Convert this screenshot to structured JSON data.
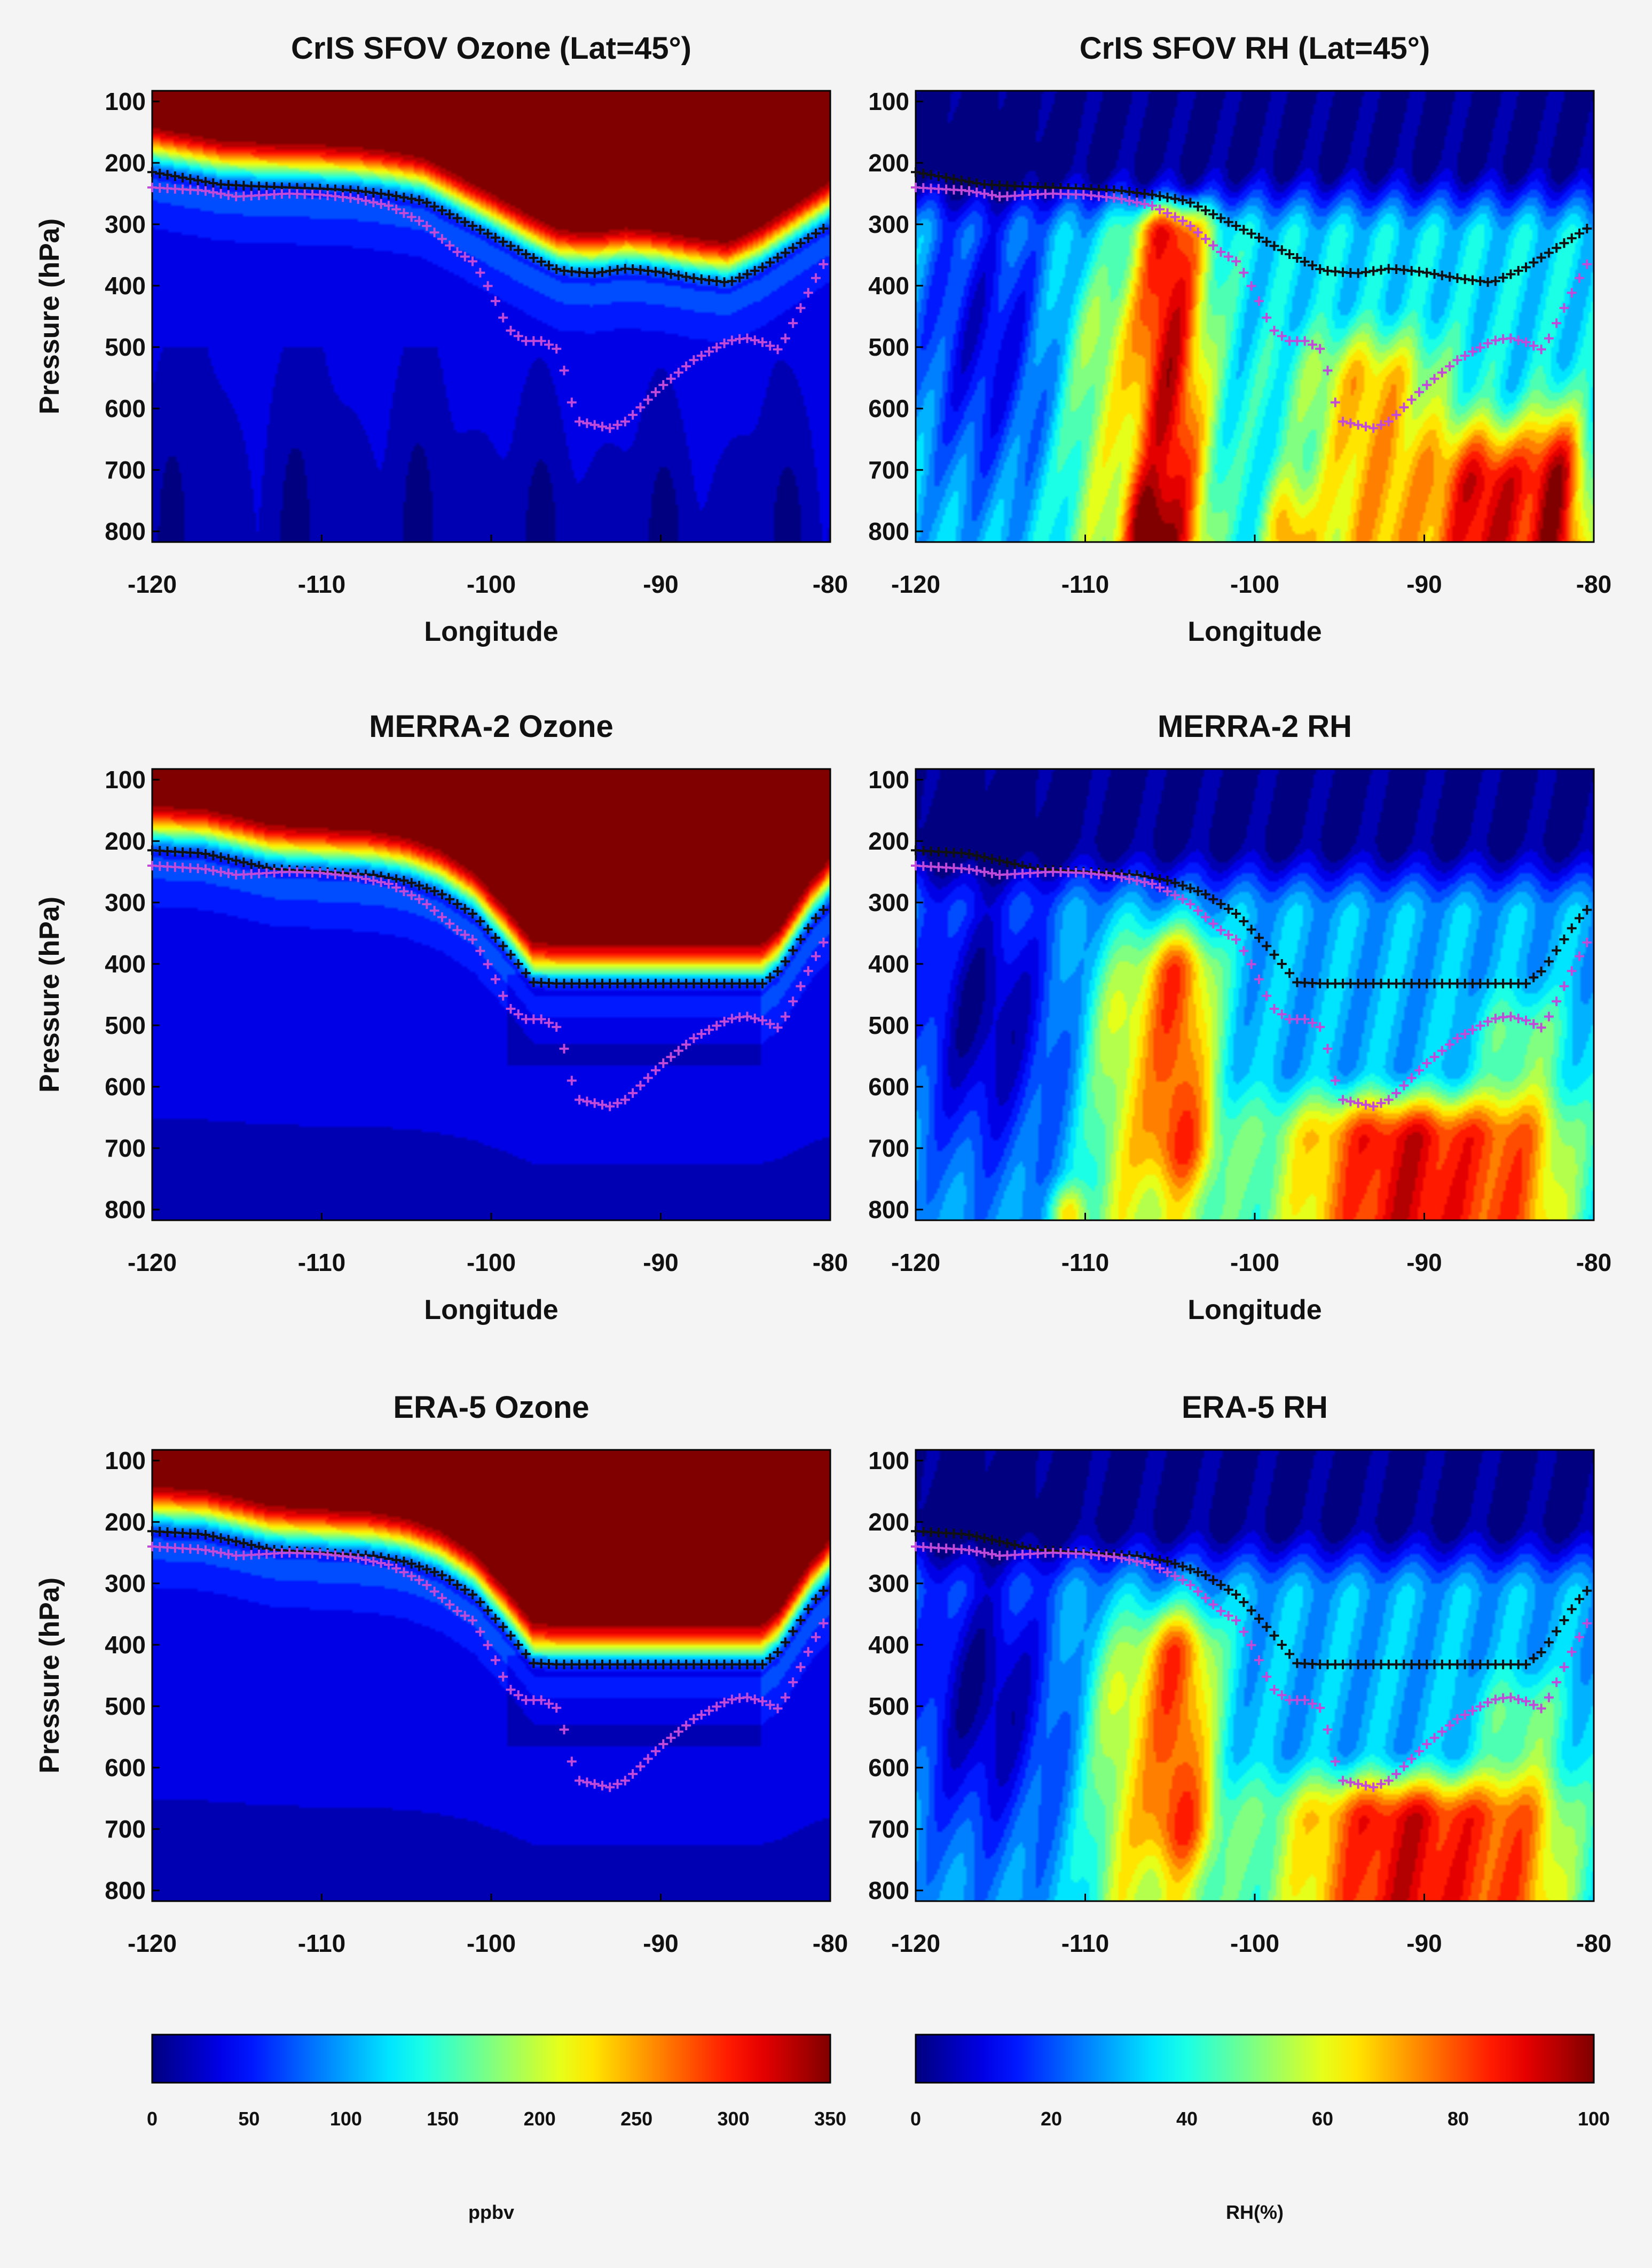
{
  "chart_data": [
    {
      "type": "heatmap",
      "title": "CrIS SFOV Ozone (Lat=45°)",
      "xlabel": "Longitude",
      "ylabel": "Pressure (hPa)",
      "field": "ozone",
      "source": "cris",
      "xlim": [
        -120,
        -80
      ],
      "ylim": [
        100,
        800
      ],
      "xticks": [
        "-120",
        "-110",
        "-100",
        "-90",
        "-80"
      ],
      "yticks": [
        "100",
        "200",
        "300",
        "400",
        "500",
        "600",
        "700",
        "800"
      ],
      "colorbar_range": [
        0,
        350
      ],
      "overlay_black_marker": "+",
      "overlay_magenta_marker": "+"
    },
    {
      "type": "heatmap",
      "title": "CrIS SFOV RH (Lat=45°)",
      "xlabel": "Longitude",
      "ylabel": "",
      "field": "rh",
      "source": "cris",
      "xlim": [
        -120,
        -80
      ],
      "ylim": [
        100,
        800
      ],
      "xticks": [
        "-120",
        "-110",
        "-100",
        "-90",
        "-80"
      ],
      "yticks": [
        "100",
        "200",
        "300",
        "400",
        "500",
        "600",
        "700",
        "800"
      ],
      "colorbar_range": [
        0,
        100
      ],
      "overlay_black_marker": "+",
      "overlay_magenta_marker": "+"
    },
    {
      "type": "heatmap",
      "title": "MERRA-2 Ozone",
      "xlabel": "Longitude",
      "ylabel": "Pressure (hPa)",
      "field": "ozone",
      "source": "merra",
      "xlim": [
        -120,
        -80
      ],
      "ylim": [
        100,
        800
      ],
      "xticks": [
        "-120",
        "-110",
        "-100",
        "-90",
        "-80"
      ],
      "yticks": [
        "100",
        "200",
        "300",
        "400",
        "500",
        "600",
        "700",
        "800"
      ],
      "colorbar_range": [
        0,
        350
      ],
      "overlay_black_marker": "+",
      "overlay_magenta_marker": "+"
    },
    {
      "type": "heatmap",
      "title": "MERRA-2 RH",
      "xlabel": "Longitude",
      "ylabel": "",
      "field": "rh",
      "source": "merra",
      "xlim": [
        -120,
        -80
      ],
      "ylim": [
        100,
        800
      ],
      "xticks": [
        "-120",
        "-110",
        "-100",
        "-90",
        "-80"
      ],
      "yticks": [
        "100",
        "200",
        "300",
        "400",
        "500",
        "600",
        "700",
        "800"
      ],
      "colorbar_range": [
        0,
        100
      ],
      "overlay_black_marker": "+",
      "overlay_magenta_marker": "+"
    },
    {
      "type": "heatmap",
      "title": "ERA-5 Ozone",
      "xlabel": "",
      "ylabel": "Pressure (hPa)",
      "field": "ozone",
      "source": "era",
      "xlim": [
        -120,
        -80
      ],
      "ylim": [
        100,
        800
      ],
      "xticks": [
        "-120",
        "-110",
        "-100",
        "-90",
        "-80"
      ],
      "yticks": [
        "100",
        "200",
        "300",
        "400",
        "500",
        "600",
        "700",
        "800"
      ],
      "colorbar_range": [
        0,
        350
      ],
      "overlay_black_marker": "+",
      "overlay_magenta_marker": "+"
    },
    {
      "type": "heatmap",
      "title": "ERA-5 RH",
      "xlabel": "",
      "ylabel": "",
      "field": "rh",
      "source": "era",
      "xlim": [
        -120,
        -80
      ],
      "ylim": [
        100,
        800
      ],
      "xticks": [
        "-120",
        "-110",
        "-100",
        "-90",
        "-80"
      ],
      "yticks": [
        "100",
        "200",
        "300",
        "400",
        "500",
        "600",
        "700",
        "800"
      ],
      "colorbar_range": [
        0,
        100
      ],
      "overlay_black_marker": "+",
      "overlay_magenta_marker": "+"
    }
  ],
  "colorbars": [
    {
      "field": "ozone",
      "range": [
        0,
        350
      ],
      "ticks": [
        "0",
        "50",
        "100",
        "150",
        "200",
        "250",
        "300",
        "350"
      ],
      "unit": "ppbv",
      "colormap": "jet"
    },
    {
      "field": "rh",
      "range": [
        0,
        100
      ],
      "ticks": [
        "0",
        "20",
        "40",
        "60",
        "80",
        "100"
      ],
      "unit": "RH(%)",
      "colormap": "jet"
    }
  ],
  "overlays": {
    "black_line_cris": [
      [
        -120,
        215
      ],
      [
        -118,
        225
      ],
      [
        -116,
        235
      ],
      [
        -114,
        238
      ],
      [
        -112,
        240
      ],
      [
        -110,
        242
      ],
      [
        -108,
        245
      ],
      [
        -106,
        252
      ],
      [
        -104,
        262
      ],
      [
        -102,
        290
      ],
      [
        -100,
        318
      ],
      [
        -98,
        348
      ],
      [
        -96,
        375
      ],
      [
        -94,
        380
      ],
      [
        -92,
        372
      ],
      [
        -90,
        378
      ],
      [
        -88,
        388
      ],
      [
        -86,
        395
      ],
      [
        -84,
        370
      ],
      [
        -82,
        335
      ],
      [
        -80,
        300
      ]
    ],
    "black_line_reanalysis": [
      [
        -120,
        215
      ],
      [
        -117,
        220
      ],
      [
        -115,
        232
      ],
      [
        -113,
        245
      ],
      [
        -110,
        250
      ],
      [
        -107,
        255
      ],
      [
        -105,
        265
      ],
      [
        -103,
        285
      ],
      [
        -101,
        320
      ],
      [
        -99,
        380
      ],
      [
        -97.5,
        430
      ],
      [
        -96,
        432
      ],
      [
        -92,
        432
      ],
      [
        -88,
        432
      ],
      [
        -84,
        432
      ],
      [
        -83,
        410
      ],
      [
        -82,
        370
      ],
      [
        -81,
        330
      ],
      [
        -80,
        300
      ]
    ],
    "magenta_line": [
      [
        -120,
        240
      ],
      [
        -117,
        245
      ],
      [
        -115,
        255
      ],
      [
        -112,
        250
      ],
      [
        -110,
        252
      ],
      [
        -108,
        258
      ],
      [
        -106,
        270
      ],
      [
        -104,
        298
      ],
      [
        -102,
        345
      ],
      [
        -101,
        362
      ],
      [
        -100,
        410
      ],
      [
        -99,
        470
      ],
      [
        -98,
        490
      ],
      [
        -97,
        490
      ],
      [
        -96,
        505
      ],
      [
        -95.5,
        560
      ],
      [
        -95,
        620
      ],
      [
        -93,
        632
      ],
      [
        -92,
        620
      ],
      [
        -90,
        565
      ],
      [
        -88,
        520
      ],
      [
        -86,
        490
      ],
      [
        -85,
        485
      ],
      [
        -84,
        492
      ],
      [
        -83,
        505
      ],
      [
        -82,
        450
      ],
      [
        -81,
        395
      ],
      [
        -80,
        345
      ]
    ]
  }
}
